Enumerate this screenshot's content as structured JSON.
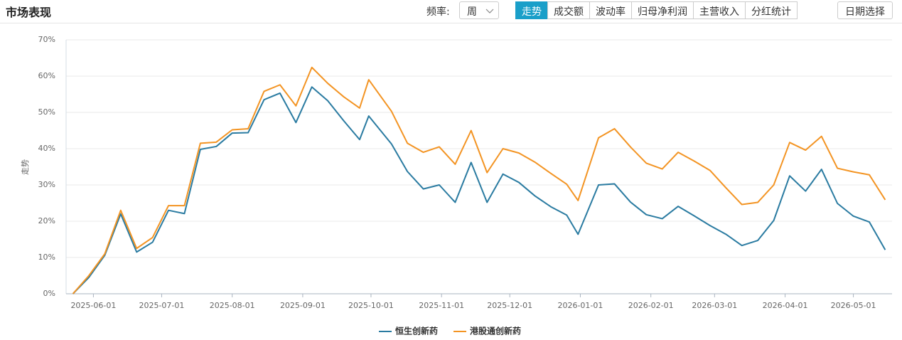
{
  "header": {
    "title": "市场表现",
    "freq_label": "频率:",
    "freq_value": "周",
    "tabs": [
      "走势",
      "成交额",
      "波动率",
      "归母净利润",
      "主营收入",
      "分红统计"
    ],
    "active_tab": "走势",
    "date_button": "日期选择"
  },
  "chart_data": {
    "type": "line",
    "ylabel": "走势",
    "x": [
      "2025-05-23",
      "2025-05-30",
      "2025-06-06",
      "2025-06-13",
      "2025-06-20",
      "2025-06-27",
      "2025-07-04",
      "2025-07-11",
      "2025-07-18",
      "2025-07-25",
      "2025-08-01",
      "2025-08-08",
      "2025-08-15",
      "2025-08-22",
      "2025-08-29",
      "2025-09-05",
      "2025-09-12",
      "2025-09-19",
      "2025-09-26",
      "2025-09-30",
      "2025-10-10",
      "2025-10-17",
      "2025-10-24",
      "2025-10-31",
      "2025-11-07",
      "2025-11-14",
      "2025-11-21",
      "2025-11-28",
      "2025-12-05",
      "2025-12-12",
      "2025-12-19",
      "2025-12-26",
      "2025-12-31",
      "2026-01-09",
      "2026-01-16",
      "2026-01-23",
      "2026-01-30",
      "2026-02-06",
      "2026-02-13",
      "2026-02-20",
      "2026-02-27",
      "2026-03-06",
      "2026-03-13",
      "2026-03-20",
      "2026-03-27",
      "2026-04-03",
      "2026-04-10",
      "2026-04-17",
      "2026-04-24",
      "2026-05-01",
      "2026-05-08",
      "2026-05-15"
    ],
    "series": [
      {
        "name": "恒生创新药",
        "color": "#2a7ba1",
        "values": [
          0,
          4.5,
          10.6,
          22,
          11.5,
          14.2,
          23,
          22.1,
          39.8,
          40.6,
          44.3,
          44.4,
          53.5,
          55.3,
          47.2,
          57,
          53.2,
          47.7,
          42.5,
          49,
          41.3,
          33.7,
          28.9,
          30,
          25.2,
          36.2,
          25.2,
          33,
          30.7,
          27,
          24,
          21.7,
          16.4,
          30,
          30.3,
          25.3,
          21.8,
          20.7,
          24.1,
          21.5,
          18.8,
          16.4,
          13.3,
          14.7,
          20.2,
          32.5,
          28.3,
          34.3,
          24.9,
          21.4,
          19.8,
          12.1
        ]
      },
      {
        "name": "港股通创新药",
        "color": "#f39423",
        "values": [
          0,
          5,
          11,
          23,
          12.5,
          15.5,
          24.3,
          24.3,
          41.5,
          41.8,
          45.2,
          45.5,
          55.8,
          57.6,
          51.8,
          62.4,
          58,
          54.3,
          51.2,
          59,
          50.3,
          41.5,
          39,
          40.5,
          35.7,
          45,
          33.4,
          40,
          38.8,
          36.3,
          33.2,
          30.2,
          25.7,
          43,
          45.5,
          40.5,
          36,
          34.4,
          39,
          36.6,
          34,
          29.2,
          24.6,
          25.2,
          30,
          41.7,
          39.6,
          43.4,
          34.6,
          33.6,
          32.8,
          25.9
        ]
      }
    ],
    "xlim": [
      "2025-05-20",
      "2026-05-18"
    ],
    "xticks": [
      "2025-06-01",
      "2025-07-01",
      "2025-08-01",
      "2025-09-01",
      "2025-10-01",
      "2025-11-01",
      "2025-12-01",
      "2026-01-01",
      "2026-02-01",
      "2026-03-01",
      "2026-04-01",
      "2026-05-01"
    ],
    "ylim": [
      0,
      70
    ],
    "yticks": [
      {
        "value": 0,
        "label": "0%"
      },
      {
        "value": 10,
        "label": "10%"
      },
      {
        "value": 20,
        "label": "20%"
      },
      {
        "value": 30,
        "label": "30%"
      },
      {
        "value": 40,
        "label": "40%"
      },
      {
        "value": 50,
        "label": "50%"
      },
      {
        "value": 60,
        "label": "60%"
      },
      {
        "value": 70,
        "label": "70%"
      }
    ],
    "grid": true
  }
}
